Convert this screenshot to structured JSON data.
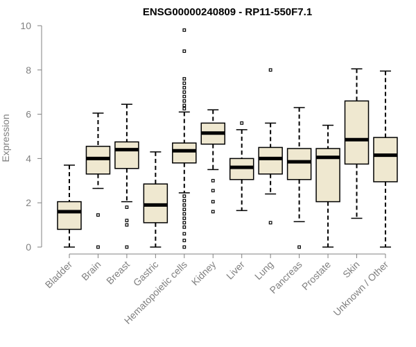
{
  "chart_data": {
    "type": "boxplot",
    "title": "ENSG00000240809 - RP11-550F7.1",
    "xlabel": "",
    "ylabel": "Expression",
    "ylim": [
      0,
      10
    ],
    "yticks": [
      0,
      2,
      4,
      6,
      8,
      10
    ],
    "grid": false,
    "colors": {
      "box_fill": "#efe8d0",
      "box_stroke": "#000000",
      "axis": "#808080"
    },
    "categories": [
      "Bladder",
      "Brain",
      "Breast",
      "Gastric",
      "Hematopoietic cells",
      "Kidney",
      "Liver",
      "Lung",
      "Pancreas",
      "Prostate",
      "Skin",
      "Unknown / Other"
    ],
    "boxes": [
      {
        "category": "Bladder",
        "whisker_low": 0.0,
        "q1": 0.8,
        "median": 1.6,
        "q3": 2.05,
        "whisker_high": 3.7,
        "outliers": []
      },
      {
        "category": "Brain",
        "whisker_low": 2.65,
        "q1": 3.3,
        "median": 4.0,
        "q3": 4.55,
        "whisker_high": 6.05,
        "outliers": [
          1.45,
          0.0
        ]
      },
      {
        "category": "Breast",
        "whisker_low": 2.05,
        "q1": 3.55,
        "median": 4.4,
        "q3": 4.75,
        "whisker_high": 6.45,
        "outliers": [
          1.8,
          1.2,
          1.0,
          0.0
        ]
      },
      {
        "category": "Gastric",
        "whisker_low": 0.0,
        "q1": 1.1,
        "median": 1.9,
        "q3": 2.85,
        "whisker_high": 4.3,
        "outliers": []
      },
      {
        "category": "Hematopoietic cells",
        "whisker_low": 2.45,
        "q1": 3.8,
        "median": 4.35,
        "q3": 4.7,
        "whisker_high": 6.1,
        "outliers": [
          9.8,
          8.85,
          7.6,
          7.4,
          7.2,
          7.0,
          6.8,
          6.6,
          6.4,
          6.25,
          2.3,
          2.1,
          1.9,
          1.7,
          1.5,
          1.3,
          1.1,
          0.9,
          0.6,
          0.3,
          0.0
        ]
      },
      {
        "category": "Kidney",
        "whisker_low": 3.5,
        "q1": 4.65,
        "median": 5.15,
        "q3": 5.6,
        "whisker_high": 6.2,
        "outliers": [
          3.0,
          2.55,
          2.05,
          1.6
        ]
      },
      {
        "category": "Liver",
        "whisker_low": 1.65,
        "q1": 3.05,
        "median": 3.6,
        "q3": 4.0,
        "whisker_high": 5.3,
        "outliers": [
          5.6
        ]
      },
      {
        "category": "Lung",
        "whisker_low": 2.4,
        "q1": 3.3,
        "median": 4.0,
        "q3": 4.5,
        "whisker_high": 5.6,
        "outliers": [
          8.0,
          1.1
        ]
      },
      {
        "category": "Pancreas",
        "whisker_low": 1.15,
        "q1": 3.05,
        "median": 3.85,
        "q3": 4.45,
        "whisker_high": 6.3,
        "outliers": [
          0.0
        ]
      },
      {
        "category": "Prostate",
        "whisker_low": 0.0,
        "q1": 2.05,
        "median": 4.05,
        "q3": 4.45,
        "whisker_high": 5.5,
        "outliers": []
      },
      {
        "category": "Skin",
        "whisker_low": 1.3,
        "q1": 3.75,
        "median": 4.85,
        "q3": 6.6,
        "whisker_high": 8.05,
        "outliers": []
      },
      {
        "category": "Unknown / Other",
        "whisker_low": 0.0,
        "q1": 2.95,
        "median": 4.15,
        "q3": 4.95,
        "whisker_high": 7.95,
        "outliers": []
      }
    ]
  }
}
